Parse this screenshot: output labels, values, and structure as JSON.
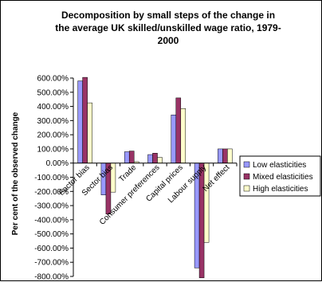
{
  "chart_data": {
    "type": "bar",
    "title_lines": [
      "Decomposition by small steps of the change in",
      "the average UK skilled/unskilled wage ratio, 1979-",
      "2000"
    ],
    "ylabel": "Per cent of the observed change",
    "categories": [
      "Factor bias",
      "Sector bias",
      "Trade",
      "Consumer preferences",
      "Capital prices",
      "Labour supply",
      "Net effect"
    ],
    "series": [
      {
        "name": "Low elasticities",
        "color": "#9999ff",
        "values": [
          580,
          -225,
          80,
          60,
          340,
          -740,
          100
        ]
      },
      {
        "name": "Mixed elasticities",
        "color": "#993366",
        "values": [
          605,
          -360,
          85,
          70,
          460,
          -810,
          100
        ]
      },
      {
        "name": "High elasticities",
        "color": "#ffffcc",
        "values": [
          425,
          -205,
          10,
          40,
          385,
          -560,
          100
        ]
      }
    ],
    "ylim": [
      -800,
      600
    ],
    "ytick_step": 100,
    "ytick_labels": [
      "600.00%",
      "500.00%",
      "400.00%",
      "300.00%",
      "200.00%",
      "100.00%",
      "0.00%",
      "-100.00%",
      "-200.00%",
      "-300.00%",
      "-400.00%",
      "-500.00%",
      "-600.00%",
      "-700.00%",
      "-800.00%"
    ],
    "grid": false,
    "legend_position": "right"
  }
}
